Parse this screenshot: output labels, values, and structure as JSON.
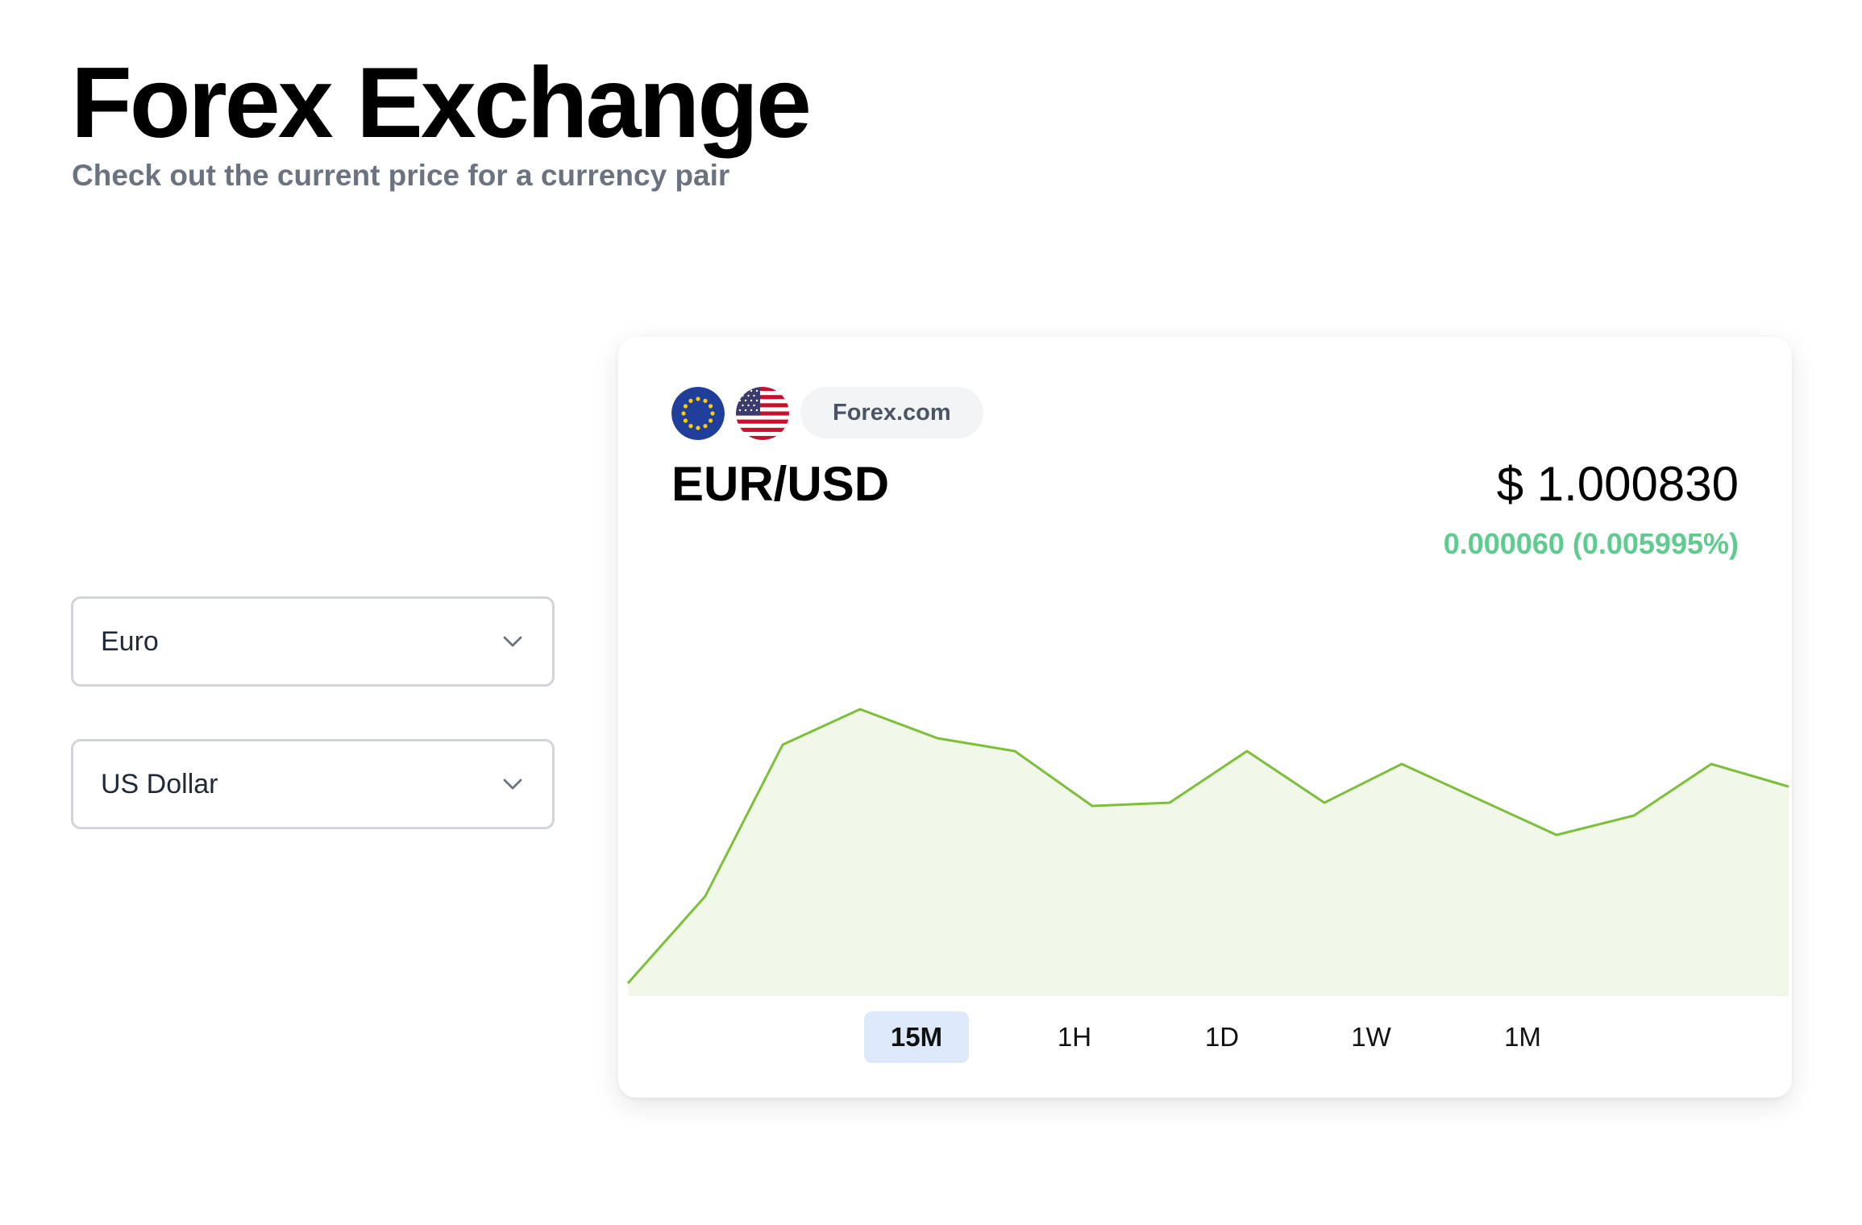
{
  "header": {
    "title": "Forex Exchange",
    "subtitle": "Check out the current price for a currency pair"
  },
  "selectors": {
    "from": {
      "value": "Euro",
      "icon": "chevron-down-icon"
    },
    "to": {
      "value": "US Dollar",
      "icon": "chevron-down-icon"
    }
  },
  "card": {
    "flags": [
      "eu-flag-icon",
      "us-flag-icon"
    ],
    "source": "Forex.com",
    "pair": "EUR/USD",
    "price": "$ 1.000830",
    "change": "0.000060 (0.005995%)",
    "line_color": "#7cbf3a",
    "fill_color": "#f1f8ea",
    "change_color": "#5fcb8f"
  },
  "chart_data": {
    "type": "area",
    "x": [
      0,
      1,
      2,
      3,
      4,
      5,
      6,
      7,
      8,
      9,
      10,
      11,
      12,
      13,
      14,
      15
    ],
    "values": [
      0.2,
      1.55,
      3.9,
      4.45,
      4.0,
      3.8,
      2.95,
      3.0,
      3.8,
      3.0,
      3.6,
      3.05,
      2.5,
      2.8,
      3.6,
      3.25
    ],
    "ylim": [
      0,
      5
    ],
    "grid": false
  },
  "time_ranges": {
    "items": [
      "15M",
      "1H",
      "1D",
      "1W",
      "1M"
    ],
    "selected": "15M"
  }
}
